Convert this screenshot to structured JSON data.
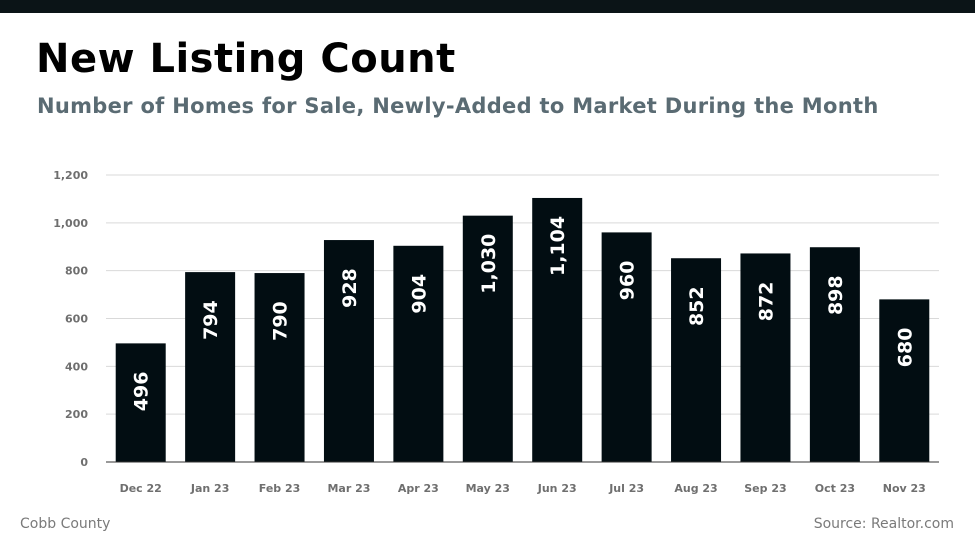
{
  "title": "New Listing Count",
  "subtitle": "Number of Homes for Sale, Newly-Added to Market During the Month",
  "footer": {
    "region": "Cobb County",
    "source": "Source: Realtor.com"
  },
  "colors": {
    "bar": "#020d12",
    "band": "#0b1417",
    "subtitle": "#5a6b73",
    "grid": "#d9d9d9"
  },
  "chart_data": {
    "type": "bar",
    "title": "New Listing Count",
    "subtitle": "Number of Homes for Sale, Newly-Added to Market During the Month",
    "xlabel": "",
    "ylabel": "",
    "categories": [
      "Dec 22",
      "Jan 23",
      "Feb 23",
      "Mar 23",
      "Apr 23",
      "May 23",
      "Jun 23",
      "Jul 23",
      "Aug 23",
      "Sep 23",
      "Oct 23",
      "Nov 23"
    ],
    "values": [
      496,
      794,
      790,
      928,
      904,
      1030,
      1104,
      960,
      852,
      872,
      898,
      680
    ],
    "value_labels": [
      "496",
      "794",
      "790",
      "928",
      "904",
      "1,030",
      "1,104",
      "960",
      "852",
      "872",
      "898",
      "680"
    ],
    "ylim": [
      0,
      1200
    ],
    "yticks": [
      0,
      200,
      400,
      600,
      800,
      1000,
      1200
    ],
    "ytick_labels": [
      "0",
      "200",
      "400",
      "600",
      "800",
      "1,000",
      "1,200"
    ],
    "grid": true,
    "legend": "none"
  }
}
